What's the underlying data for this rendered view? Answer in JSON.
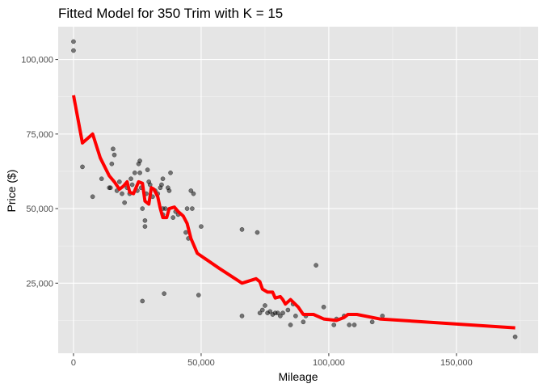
{
  "chart_data": {
    "type": "scatter",
    "title": "Fitted Model for 350 Trim with K = 15",
    "xlabel": "Mileage",
    "ylabel": "Price ($)",
    "xlim": [
      -6000,
      182000
    ],
    "ylim": [
      1500,
      111000
    ],
    "x_ticks": [
      0,
      50000,
      100000,
      150000
    ],
    "x_tick_labels": [
      "0",
      "50,000",
      "100,000",
      "150,000"
    ],
    "y_ticks": [
      25000,
      50000,
      75000,
      100000
    ],
    "y_tick_labels": [
      "25,000",
      "50,000",
      "75,000",
      "100,000"
    ],
    "x_minor_ticks": [
      25000,
      75000,
      125000,
      175000
    ],
    "y_minor_ticks": [
      12500,
      37500,
      62500,
      87500
    ],
    "grid": true,
    "legend": "none",
    "colors": {
      "panel_background": "#e5e5e5",
      "grid_major": "#ffffff",
      "grid_minor": "#f2f2f2",
      "points": "#000000",
      "fit_line": "#ff0000"
    },
    "series": [
      {
        "type": "scatter",
        "points": [
          [
            0,
            106000
          ],
          [
            0,
            103000
          ],
          [
            3500,
            64000
          ],
          [
            7500,
            54000
          ],
          [
            11000,
            60000
          ],
          [
            14000,
            57000
          ],
          [
            14500,
            57000
          ],
          [
            15000,
            65000
          ],
          [
            15500,
            70000
          ],
          [
            16000,
            68000
          ],
          [
            17000,
            56000
          ],
          [
            18000,
            59000
          ],
          [
            19000,
            55000
          ],
          [
            20000,
            52000
          ],
          [
            21000,
            57000
          ],
          [
            22000,
            55000
          ],
          [
            22500,
            60000
          ],
          [
            23000,
            58000
          ],
          [
            24000,
            62000
          ],
          [
            25000,
            56000
          ],
          [
            25500,
            65000
          ],
          [
            26000,
            66000
          ],
          [
            26000,
            62000
          ],
          [
            26500,
            57000
          ],
          [
            27000,
            50000
          ],
          [
            27000,
            19000
          ],
          [
            28000,
            46000
          ],
          [
            28000,
            44000
          ],
          [
            28500,
            55000
          ],
          [
            29000,
            63000
          ],
          [
            29500,
            59000
          ],
          [
            30000,
            58000
          ],
          [
            31000,
            54000
          ],
          [
            32000,
            56000
          ],
          [
            33000,
            55000
          ],
          [
            34000,
            57000
          ],
          [
            34500,
            58000
          ],
          [
            35000,
            60000
          ],
          [
            35000,
            50000
          ],
          [
            35000,
            48000
          ],
          [
            35500,
            21500
          ],
          [
            36000,
            50000
          ],
          [
            37000,
            57000
          ],
          [
            37500,
            56000
          ],
          [
            38000,
            62000
          ],
          [
            39000,
            47000
          ],
          [
            40000,
            49000
          ],
          [
            41000,
            48000
          ],
          [
            44000,
            42000
          ],
          [
            44500,
            50000
          ],
          [
            45000,
            40000
          ],
          [
            46000,
            56000
          ],
          [
            46500,
            50000
          ],
          [
            47000,
            55000
          ],
          [
            49000,
            21000
          ],
          [
            50000,
            44000
          ],
          [
            66000,
            43000
          ],
          [
            66000,
            14000
          ],
          [
            72000,
            42000
          ],
          [
            73000,
            15000
          ],
          [
            74000,
            16000
          ],
          [
            75000,
            17500
          ],
          [
            76000,
            15000
          ],
          [
            77000,
            15500
          ],
          [
            78000,
            14500
          ],
          [
            79000,
            15000
          ],
          [
            80000,
            15000
          ],
          [
            81000,
            14000
          ],
          [
            82000,
            15000
          ],
          [
            84000,
            16000
          ],
          [
            85000,
            11000
          ],
          [
            86000,
            18000
          ],
          [
            87000,
            14000
          ],
          [
            90000,
            12000
          ],
          [
            91000,
            14000
          ],
          [
            95000,
            31000
          ],
          [
            98000,
            17000
          ],
          [
            102000,
            11000
          ],
          [
            103000,
            13000
          ],
          [
            106000,
            14000
          ],
          [
            108000,
            11000
          ],
          [
            110000,
            11000
          ],
          [
            117000,
            12000
          ],
          [
            121000,
            14000
          ],
          [
            173000,
            7000
          ]
        ]
      },
      {
        "type": "line",
        "points": [
          [
            0,
            88000
          ],
          [
            3500,
            72000
          ],
          [
            7500,
            75000
          ],
          [
            10500,
            67000
          ],
          [
            14000,
            61000
          ],
          [
            16000,
            59000
          ],
          [
            18000,
            56500
          ],
          [
            19500,
            57500
          ],
          [
            21000,
            59000
          ],
          [
            22000,
            55500
          ],
          [
            23500,
            55000
          ],
          [
            25500,
            59000
          ],
          [
            27000,
            58500
          ],
          [
            28000,
            52500
          ],
          [
            29500,
            51500
          ],
          [
            30500,
            57000
          ],
          [
            31500,
            56500
          ],
          [
            33000,
            54000
          ],
          [
            34000,
            50000
          ],
          [
            35000,
            47000
          ],
          [
            36500,
            47000
          ],
          [
            37500,
            50000
          ],
          [
            39500,
            50500
          ],
          [
            41000,
            49000
          ],
          [
            43000,
            47500
          ],
          [
            44500,
            45000
          ],
          [
            46000,
            40000
          ],
          [
            48500,
            35000
          ],
          [
            57000,
            30000
          ],
          [
            66000,
            25000
          ],
          [
            71500,
            26500
          ],
          [
            73000,
            25500
          ],
          [
            74000,
            23000
          ],
          [
            76000,
            22000
          ],
          [
            78000,
            22000
          ],
          [
            79000,
            20000
          ],
          [
            81000,
            20500
          ],
          [
            82000,
            19500
          ],
          [
            83000,
            18000
          ],
          [
            85000,
            19500
          ],
          [
            88000,
            17000
          ],
          [
            90000,
            14500
          ],
          [
            94000,
            14500
          ],
          [
            98000,
            13000
          ],
          [
            103000,
            12500
          ],
          [
            106000,
            13500
          ],
          [
            107500,
            14500
          ],
          [
            111000,
            14500
          ],
          [
            120000,
            13000
          ],
          [
            173000,
            10000
          ]
        ]
      }
    ]
  }
}
